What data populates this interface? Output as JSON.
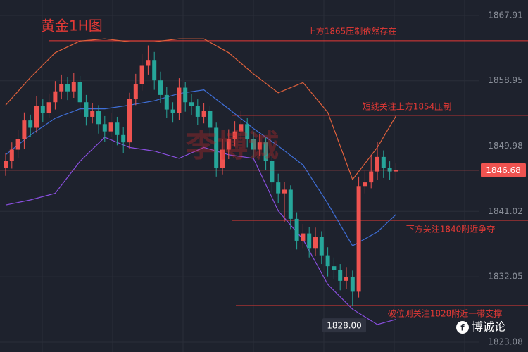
{
  "chart_data": {
    "type": "candlestick",
    "title": "黄金1H图",
    "watermark": "李博诚",
    "brand": "博诚论",
    "ylim": [
      1821.73,
      1870.03
    ],
    "yticks": [
      1867.91,
      1858.95,
      1849.98,
      1841.02,
      1832.05,
      1823.08
    ],
    "grid": true,
    "up_color": "#ef5350",
    "down_color": "#26a69a",
    "open": [
      1847.0,
      1848.0,
      1849.5,
      1851.0,
      1853.5,
      1852.5,
      1855.5,
      1854.5,
      1856.0,
      1857.5,
      1858.5,
      1857.5,
      1858.8,
      1856.0,
      1854.0,
      1854.8,
      1853.0,
      1852.0,
      1853.2,
      1851.5,
      1850.5,
      1856.5,
      1858.5,
      1861.0,
      1861.8,
      1859.0,
      1857.0,
      1855.0,
      1854.5,
      1858.0,
      1856.0,
      1855.5,
      1854.0,
      1854.8,
      1852.5,
      1847.0,
      1849.5,
      1851.0,
      1852.0,
      1853.0,
      1851.0,
      1849.5,
      1850.5,
      1848.0,
      1845.0,
      1843.5,
      1844.0,
      1840.0,
      1837.0,
      1838.0,
      1836.0,
      1837.5,
      1835.0,
      1833.5,
      1833.0,
      1831.5,
      1832.0,
      1830.0,
      1844.5,
      1845.0,
      1846.5,
      1848.5,
      1847.0,
      1846.5
    ],
    "high": [
      1849.0,
      1850.5,
      1852.2,
      1854.6,
      1854.3,
      1856.8,
      1856.4,
      1857.2,
      1858.9,
      1859.8,
      1859.4,
      1860.0,
      1859.6,
      1857.0,
      1855.9,
      1855.6,
      1854.1,
      1854.5,
      1854.0,
      1852.6,
      1857.3,
      1859.9,
      1862.6,
      1863.8,
      1862.9,
      1860.2,
      1858.1,
      1856.0,
      1859.3,
      1858.8,
      1857.1,
      1856.4,
      1855.9,
      1855.5,
      1853.2,
      1851.0,
      1852.3,
      1853.4,
      1854.8,
      1853.9,
      1852.0,
      1851.6,
      1851.2,
      1848.9,
      1846.2,
      1845.1,
      1844.6,
      1840.9,
      1839.3,
      1838.9,
      1838.8,
      1838.3,
      1836.1,
      1834.7,
      1833.8,
      1833.4,
      1832.9,
      1845.8,
      1846.6,
      1848.8,
      1850.6,
      1849.4,
      1847.9,
      1847.6
    ],
    "low": [
      1845.9,
      1846.9,
      1848.3,
      1849.6,
      1851.2,
      1851.8,
      1853.3,
      1853.8,
      1855.0,
      1856.4,
      1856.3,
      1856.6,
      1854.6,
      1852.8,
      1853.1,
      1851.7,
      1850.6,
      1851.2,
      1850.1,
      1849.0,
      1849.6,
      1855.6,
      1857.6,
      1859.8,
      1857.7,
      1855.9,
      1853.8,
      1853.2,
      1853.6,
      1854.7,
      1854.2,
      1852.9,
      1853.1,
      1851.4,
      1845.8,
      1846.1,
      1848.2,
      1849.9,
      1850.8,
      1849.8,
      1848.4,
      1848.6,
      1846.7,
      1843.6,
      1842.2,
      1839.5,
      1838.6,
      1835.8,
      1836.0,
      1834.7,
      1834.9,
      1833.8,
      1832.1,
      1831.7,
      1830.2,
      1830.4,
      1828.0,
      1829.2,
      1843.5,
      1844.2,
      1845.3,
      1845.6,
      1845.4,
      1845.3
    ],
    "close": [
      1848.0,
      1849.5,
      1851.0,
      1853.5,
      1852.5,
      1855.5,
      1854.5,
      1856.0,
      1857.5,
      1858.5,
      1857.5,
      1858.8,
      1856.0,
      1854.0,
      1854.8,
      1853.0,
      1852.0,
      1853.2,
      1851.5,
      1850.5,
      1856.5,
      1858.5,
      1861.0,
      1861.8,
      1859.0,
      1857.0,
      1855.0,
      1854.5,
      1858.0,
      1856.0,
      1855.5,
      1854.0,
      1854.8,
      1852.5,
      1847.0,
      1849.5,
      1851.0,
      1852.0,
      1853.0,
      1851.0,
      1849.5,
      1850.5,
      1848.0,
      1845.0,
      1843.5,
      1844.0,
      1840.0,
      1837.0,
      1838.0,
      1836.0,
      1837.5,
      1835.0,
      1833.5,
      1833.0,
      1831.5,
      1832.0,
      1830.0,
      1844.5,
      1845.0,
      1846.5,
      1848.5,
      1847.0,
      1846.5,
      1846.68
    ],
    "low_label": {
      "value": 1828.0,
      "label": "1828.00"
    },
    "indicators": [
      {
        "color": "#e0613c",
        "x": [
          0,
          4,
          8,
          12,
          16,
          20,
          24,
          28,
          32,
          36,
          40,
          44,
          48,
          52,
          56,
          60,
          63
        ],
        "values": [
          1855.6,
          1859.4,
          1862.8,
          1864.4,
          1864.7,
          1864.3,
          1864.3,
          1864.7,
          1864.7,
          1862.8,
          1859.9,
          1857.3,
          1858.7,
          1854.6,
          1845.4,
          1849.8,
          1854.1
        ]
      },
      {
        "color": "#3f6fd8",
        "x": [
          0,
          4,
          8,
          12,
          16,
          20,
          24,
          28,
          32,
          36,
          40,
          44,
          48,
          52,
          56,
          60,
          63
        ],
        "values": [
          1848.8,
          1851.5,
          1853.8,
          1855.1,
          1855.1,
          1855.6,
          1856.2,
          1857.2,
          1857.7,
          1855.1,
          1852.4,
          1850.0,
          1847.4,
          1842.1,
          1836.3,
          1838.2,
          1840.6
        ]
      },
      {
        "color": "#8a4fe0",
        "x": [
          0,
          4,
          8,
          12,
          16,
          20,
          24,
          28,
          32,
          36,
          40,
          44,
          48,
          52,
          56,
          60,
          63
        ],
        "values": [
          1841.9,
          1842.6,
          1843.5,
          1847.9,
          1851.2,
          1849.8,
          1849.3,
          1848.3,
          1849.8,
          1848.8,
          1848.3,
          1841.1,
          1837.2,
          1831.0,
          1827.6,
          1825.5,
          1826.2
        ]
      }
    ],
    "annotations": [
      {
        "text": "上方1865压制依然存在",
        "value": 1864.44,
        "color": "#e53935"
      },
      {
        "text": "短线关注上方1854压制",
        "value": 1854.2,
        "color": "#e53935"
      },
      {
        "text": "下方关注1840附近争夺",
        "value": 1839.8,
        "color": "#e53935"
      },
      {
        "text": "破位则关注1828附近一带支撑",
        "value": 1828.1,
        "color": "#e53935"
      }
    ]
  }
}
